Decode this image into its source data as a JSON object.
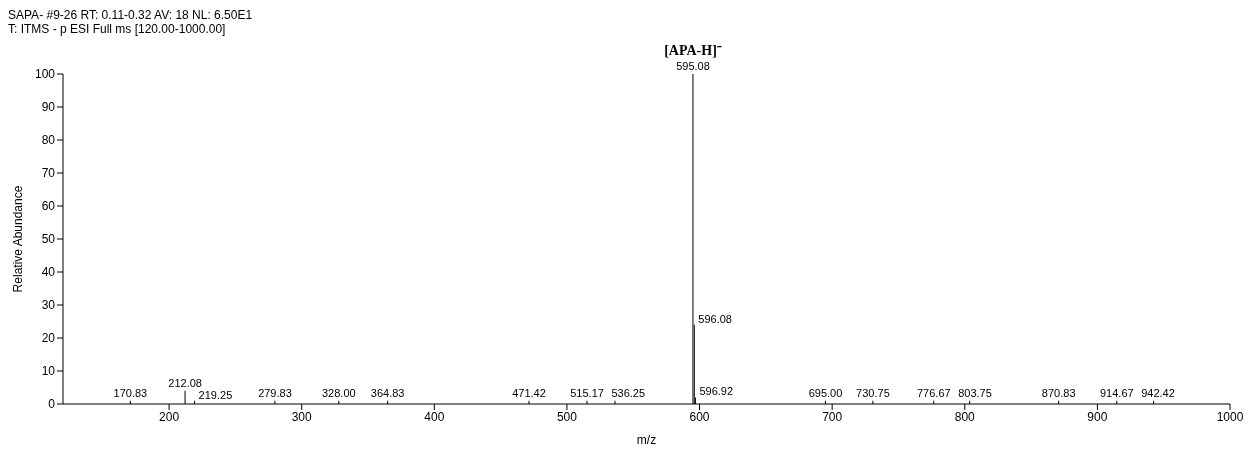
{
  "chart_data": {
    "type": "bar",
    "title": "SAPA- #9-26  RT: 0.11-0.32  AV: 18  NL: 6.50E1",
    "subtitle": "T: ITMS - p ESI Full ms [120.00-1000.00]",
    "xlabel": "m/z",
    "ylabel": "Relative Abundance",
    "x": [
      170.83,
      212.08,
      219.25,
      279.83,
      328.0,
      364.83,
      471.42,
      515.17,
      536.25,
      595.08,
      596.08,
      596.92,
      695.0,
      730.75,
      776.67,
      803.75,
      870.83,
      914.67,
      942.42
    ],
    "values": [
      1,
      4,
      1,
      1,
      1,
      1,
      1,
      1,
      1,
      100,
      24,
      2,
      1,
      1,
      1,
      1,
      1,
      1,
      1
    ],
    "color": "#000000",
    "xlim": [
      120,
      1000
    ],
    "xticks": [
      200,
      300,
      400,
      500,
      600,
      700,
      800,
      900,
      1000
    ],
    "ylim": [
      0,
      100
    ],
    "yticks": [
      0,
      10,
      20,
      30,
      40,
      50,
      60,
      70,
      80,
      90,
      100
    ],
    "grid": false,
    "legend": false,
    "annotations": [
      {
        "text": "170.83",
        "x": 170.83,
        "y": 1
      },
      {
        "text": "212.08",
        "x": 212.08,
        "y": 4
      },
      {
        "text": "219.25",
        "x": 219.25,
        "y": 1
      },
      {
        "text": "279.83",
        "x": 279.83,
        "y": 1
      },
      {
        "text": "328.00",
        "x": 328.0,
        "y": 1
      },
      {
        "text": "364.83",
        "x": 364.83,
        "y": 1
      },
      {
        "text": "471.42",
        "x": 471.42,
        "y": 1
      },
      {
        "text": "515.17",
        "x": 515.17,
        "y": 1
      },
      {
        "text": "536.25",
        "x": 536.25,
        "y": 1
      },
      {
        "text": "595.08",
        "x": 595.08,
        "y": 100
      },
      {
        "text": "[APA-H]⁻",
        "x": 595.08,
        "y": 100
      },
      {
        "text": "596.08",
        "x": 596.08,
        "y": 24
      },
      {
        "text": "596.92",
        "x": 596.92,
        "y": 2
      },
      {
        "text": "695.00",
        "x": 695.0,
        "y": 1
      },
      {
        "text": "730.75",
        "x": 730.75,
        "y": 1
      },
      {
        "text": "776.67",
        "x": 776.67,
        "y": 1
      },
      {
        "text": "803.75",
        "x": 803.75,
        "y": 1
      },
      {
        "text": "870.83",
        "x": 870.83,
        "y": 1
      },
      {
        "text": "914.67",
        "x": 914.67,
        "y": 1
      },
      {
        "text": "942.42",
        "x": 942.42,
        "y": 1
      }
    ]
  }
}
